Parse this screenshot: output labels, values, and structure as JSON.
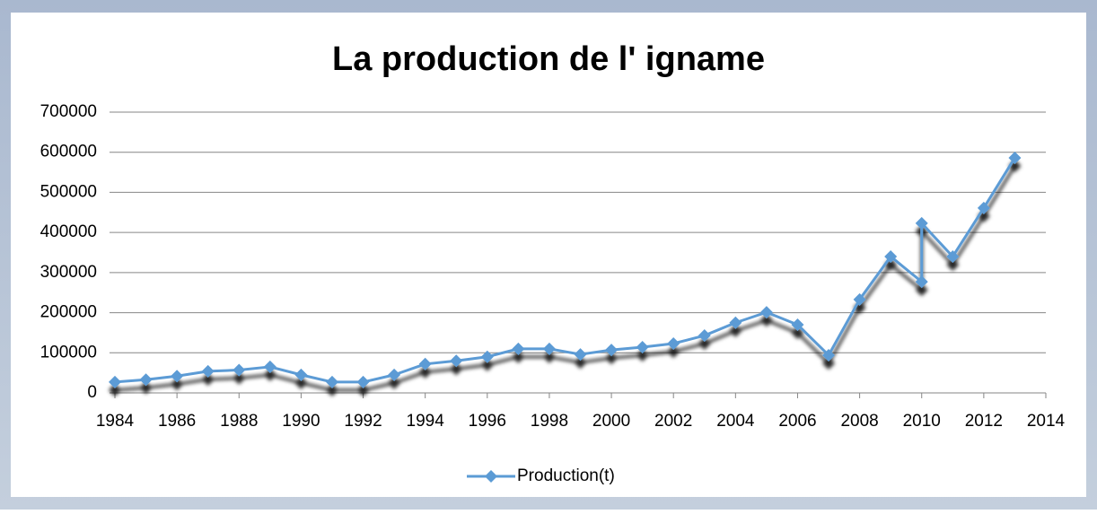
{
  "chart_data": {
    "type": "line",
    "title": "La production de l' igname",
    "x": [
      1984,
      1985,
      1986,
      1987,
      1988,
      1989,
      1990,
      1991,
      1992,
      1993,
      1994,
      1995,
      1996,
      1997,
      1998,
      1999,
      2000,
      2001,
      2002,
      2003,
      2004,
      2005,
      2006,
      2007,
      2008,
      2009,
      2010,
      2010,
      2011,
      2012,
      2013
    ],
    "series": [
      {
        "name": "Production(t)",
        "color": "#5b9bd5",
        "values": [
          27000,
          33000,
          42000,
          54000,
          57000,
          65000,
          45000,
          27000,
          27000,
          45000,
          72000,
          80000,
          90000,
          110000,
          110000,
          96000,
          107000,
          114000,
          123000,
          143000,
          175000,
          201000,
          170000,
          94000,
          233000,
          340000,
          277000,
          423000,
          340000,
          461000,
          586000
        ]
      }
    ],
    "xlim": [
      1984,
      2014
    ],
    "xticks": [
      1984,
      1986,
      1988,
      1990,
      1992,
      1994,
      1996,
      1998,
      2000,
      2002,
      2004,
      2006,
      2008,
      2010,
      2012,
      2014
    ],
    "ylim": [
      0,
      700000
    ],
    "yticks": [
      0,
      100000,
      200000,
      300000,
      400000,
      500000,
      600000,
      700000
    ],
    "grid": true,
    "legend": "bottom"
  }
}
